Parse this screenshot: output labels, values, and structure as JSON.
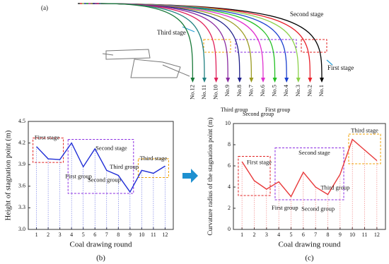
{
  "diagram": {
    "panel_label": "(a)",
    "second_stage": "Second stage",
    "third_stage": "Third stage",
    "first_stage": "First stage",
    "third_group": "Third group",
    "second_group": "Second group",
    "first_group": "First group",
    "curves": [
      {
        "label": "No.1",
        "color": "#000000"
      },
      {
        "label": "No.2",
        "color": "#e8202a"
      },
      {
        "label": "No.3",
        "color": "#8bd14a"
      },
      {
        "label": "No.4",
        "color": "#1a3fd0"
      },
      {
        "label": "No.5",
        "color": "#22c022"
      },
      {
        "label": "No.6",
        "color": "#e030d0"
      },
      {
        "label": "No.7",
        "color": "#9a9a20"
      },
      {
        "label": "No.8",
        "color": "#20208a"
      },
      {
        "label": "No.9",
        "color": "#8a2aa0"
      },
      {
        "label": "No.10",
        "color": "#e0205a"
      },
      {
        "label": "No.11",
        "color": "#208080"
      },
      {
        "label": "No.12",
        "color": "#1a7a3a"
      }
    ]
  },
  "chart_data": [
    {
      "type": "line",
      "panel_label": "(b)",
      "x_label": "Coal drawing round",
      "y_label": "Height of stagnation point (m)",
      "x": [
        1,
        2,
        3,
        4,
        5,
        6,
        7,
        8,
        9,
        10,
        11,
        12
      ],
      "xlim": [
        0.3,
        12.7
      ],
      "xticks": [
        1,
        2,
        3,
        4,
        5,
        6,
        7,
        8,
        9,
        10,
        11,
        12
      ],
      "ylim": [
        3.0,
        4.5
      ],
      "yticks": [
        {
          "value": 3.0,
          "label": "3.0"
        },
        3.3,
        3.6,
        3.9,
        4.2,
        4.5
      ],
      "series": [
        {
          "color": "#1f2dd6",
          "values": [
            4.15,
            3.98,
            3.97,
            4.2,
            3.87,
            4.12,
            3.82,
            3.75,
            3.52,
            3.82,
            3.78,
            3.88
          ]
        }
      ],
      "annotations": [
        "First stage",
        "First group",
        "Second group",
        "Second stage",
        "Third group",
        "Third stage"
      ]
    },
    {
      "type": "line",
      "panel_label": "(c)",
      "x_label": "Coal drawing round",
      "y_label": "Curvature radius of the stagnation point (m)",
      "x": [
        1,
        2,
        3,
        4,
        5,
        6,
        7,
        8,
        9,
        10,
        11,
        12
      ],
      "xlim": [
        0.3,
        12.7
      ],
      "xticks": [
        1,
        2,
        3,
        4,
        5,
        6,
        7,
        8,
        9,
        10,
        11,
        12
      ],
      "ylim": [
        0,
        10
      ],
      "yticks": [
        0,
        2,
        4,
        6,
        8,
        10
      ],
      "series": [
        {
          "color": "#e8393a",
          "values": [
            6.4,
            4.6,
            3.8,
            4.5,
            3.1,
            5.4,
            4.0,
            3.3,
            5.2,
            8.5,
            7.5,
            6.5
          ]
        }
      ],
      "annotations": [
        "First stage",
        "First group",
        "Second group",
        "Second stage",
        "Third group",
        "Third stage"
      ]
    }
  ]
}
